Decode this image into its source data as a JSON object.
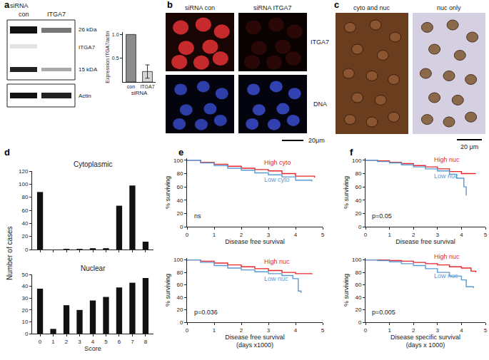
{
  "panel_labels": [
    "a",
    "b",
    "c",
    "d",
    "e",
    "f"
  ],
  "images": {
    "blot": {
      "header": "siRNA",
      "lanes": [
        "con",
        "ITGA7"
      ],
      "bands": [
        "26 kDa",
        "ITGA7",
        "15 kDA"
      ],
      "loading": "Actin"
    },
    "immunofluorescence": {
      "columns": [
        "siRNA con",
        "siRNA ITGA7"
      ],
      "rows": [
        "ITGA7",
        "DNA"
      ],
      "scale": "20μm"
    },
    "immunohistochemistry": {
      "columns": [
        "cyto and nuc",
        "nuc only"
      ],
      "scale": "20 μm"
    }
  },
  "chart_data": [
    {
      "type": "bar",
      "categories": [
        "con",
        "ITGA7"
      ],
      "values": [
        1.0,
        0.22
      ],
      "errors": [
        null,
        0.14
      ],
      "colors": [
        "#8c8c8c",
        "#d6d6d6"
      ],
      "x_label": [
        "siRNA"
      ],
      "y_label": "Expression ITGA7/actin",
      "ylim": [
        0,
        1.05
      ],
      "yticks": [
        0.5,
        {
          "value": 1,
          "label": "1.0"
        }
      ],
      "grid": false
    },
    {
      "type": "bar",
      "title": "Cytoplasmic",
      "x": [
        0,
        1,
        2,
        3,
        4,
        5,
        6,
        7,
        8
      ],
      "values": [
        88,
        0,
        1,
        1,
        2,
        2,
        67,
        98,
        12
      ],
      "color": "#111111",
      "y_label": "Number of cases",
      "xlim": [
        -0.6,
        8.6
      ],
      "xticks": [
        0,
        1,
        2,
        3,
        4,
        5,
        6,
        7,
        8
      ],
      "ylim": [
        0,
        120
      ],
      "yticks": [
        0,
        20,
        40,
        60,
        80,
        100,
        120
      ],
      "tick_labels": "y",
      "grid": false
    },
    {
      "type": "bar",
      "title": "Nuclear",
      "x": [
        0,
        1,
        2,
        3,
        4,
        5,
        6,
        7,
        8
      ],
      "values": [
        38,
        4,
        24,
        20,
        28,
        31,
        39,
        43,
        47
      ],
      "color": "#111111",
      "x_label": [
        "Score"
      ],
      "xlim": [
        -0.6,
        8.6
      ],
      "xticks": [
        0,
        1,
        2,
        3,
        4,
        5,
        6,
        7,
        8
      ],
      "ylim": [
        0,
        50
      ],
      "yticks": [
        0,
        10,
        20,
        30,
        40,
        50
      ],
      "grid": false
    },
    {
      "type": "line",
      "line_style": "step",
      "x_label": [
        "Disease free survival"
      ],
      "y_label": "% surviving",
      "annotations": [
        "ns"
      ],
      "xlim": [
        0,
        5
      ],
      "xticks": [
        0,
        1,
        2,
        3,
        4,
        5
      ],
      "ylim": [
        0,
        103
      ],
      "yticks": [
        0,
        20,
        40,
        60,
        80,
        100
      ],
      "grid": false,
      "series": [
        {
          "name": "High cyto",
          "color": "#e8262b",
          "x": [
            0,
            0.5,
            1,
            1.5,
            2,
            2.5,
            3,
            3.5,
            4,
            4.7
          ],
          "values": [
            100,
            97,
            94,
            91,
            88,
            86,
            84,
            80,
            76,
            74
          ]
        },
        {
          "name": "Low cyto",
          "color": "#5b9bd5",
          "x": [
            0,
            0.5,
            1,
            1.5,
            2,
            2.5,
            3,
            3.5,
            4,
            4.6
          ],
          "values": [
            100,
            96,
            92,
            88,
            85,
            81,
            78,
            75,
            70,
            68
          ]
        }
      ]
    },
    {
      "type": "line",
      "line_style": "step",
      "x_label": [
        "Disease free survival",
        "(days x1000)"
      ],
      "y_label": "% surviving",
      "annotations": [
        "p=0.036"
      ],
      "xlim": [
        0,
        5
      ],
      "xticks": [
        0,
        1,
        2,
        3,
        4,
        5
      ],
      "ylim": [
        0,
        103
      ],
      "yticks": [
        0,
        20,
        40,
        60,
        80,
        100
      ],
      "grid": false,
      "series": [
        {
          "name": "High nuc",
          "color": "#e8262b",
          "x": [
            0,
            0.5,
            1,
            1.5,
            2,
            2.5,
            3,
            3.5,
            4,
            4.6
          ],
          "values": [
            100,
            98,
            95,
            92,
            89,
            86,
            83,
            80,
            78,
            77
          ]
        },
        {
          "name": "Low nuc",
          "color": "#5b9bd5",
          "x": [
            0,
            0.5,
            1,
            1.5,
            2,
            2.5,
            3,
            3.5,
            3.9,
            4.1,
            4.2
          ],
          "values": [
            100,
            96,
            91,
            87,
            84,
            81,
            78,
            75,
            70,
            50,
            47
          ]
        }
      ]
    },
    {
      "type": "line",
      "line_style": "step",
      "x_label": [
        "Disease free survival"
      ],
      "y_label": "% surviving",
      "annotations": [
        "p=0.05"
      ],
      "xlim": [
        0,
        5
      ],
      "xticks": [
        0,
        1,
        2,
        3,
        4,
        5
      ],
      "ylim": [
        0,
        103
      ],
      "yticks": [
        0,
        20,
        40,
        60,
        80,
        100
      ],
      "grid": false,
      "series": [
        {
          "name": "High nuc",
          "color": "#e8262b",
          "x": [
            0,
            0.5,
            1,
            1.5,
            2,
            2.5,
            3,
            3.5,
            4,
            4.6
          ],
          "values": [
            100,
            99,
            97,
            95,
            92,
            90,
            87,
            83,
            80,
            80
          ]
        },
        {
          "name": "Low nuc",
          "color": "#5b9bd5",
          "x": [
            0,
            0.5,
            1,
            1.5,
            2,
            2.5,
            3,
            3.5,
            3.8,
            4.1,
            4.2
          ],
          "values": [
            100,
            98,
            96,
            93,
            90,
            87,
            84,
            79,
            73,
            60,
            47
          ]
        }
      ]
    },
    {
      "type": "line",
      "line_style": "step",
      "x_label": [
        "Disease specific survival",
        "(days x 1000)"
      ],
      "y_label": "% surviving",
      "annotations": [
        "p=0.005"
      ],
      "xlim": [
        0,
        5
      ],
      "xticks": [
        0,
        1,
        2,
        3,
        4,
        5
      ],
      "ylim": [
        0,
        103
      ],
      "yticks": [
        0,
        20,
        40,
        60,
        80,
        100
      ],
      "grid": false,
      "series": [
        {
          "name": "High nuc",
          "color": "#e8262b",
          "x": [
            0,
            0.5,
            1,
            1.5,
            2,
            2.5,
            3,
            3.5,
            4,
            4.4,
            4.6
          ],
          "values": [
            100,
            100,
            99,
            98,
            96,
            94,
            92,
            89,
            87,
            82,
            80
          ]
        },
        {
          "name": "Low nuc",
          "color": "#5b9bd5",
          "x": [
            0,
            0.5,
            1,
            1.5,
            2,
            2.5,
            3,
            3.5,
            4,
            4.2,
            4.5
          ],
          "values": [
            100,
            99,
            97,
            94,
            91,
            86,
            80,
            74,
            68,
            57,
            55
          ]
        }
      ]
    }
  ]
}
